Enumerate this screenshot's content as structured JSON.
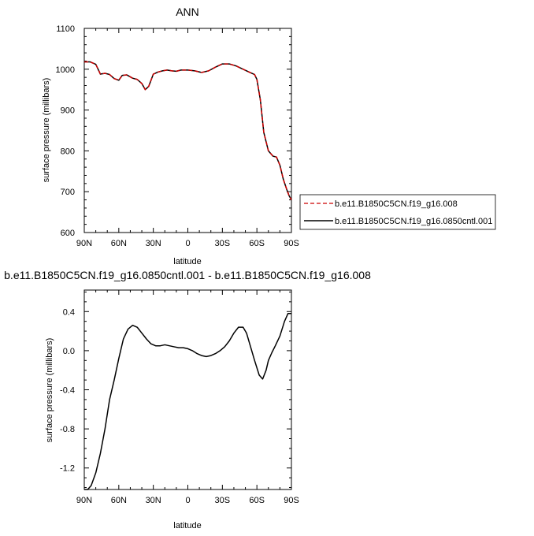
{
  "chart_data": [
    {
      "type": "line",
      "title": "ANN",
      "xlabel": "latitude",
      "ylabel": "surface pressure (millibars)",
      "xlim": [
        90,
        -90
      ],
      "ylim": [
        600,
        1100
      ],
      "x_ticks": [
        90,
        60,
        30,
        0,
        -30,
        -60,
        -90
      ],
      "x_tick_labels": [
        "90N",
        "60N",
        "30N",
        "0",
        "30S",
        "60S",
        "90S"
      ],
      "y_ticks": [
        600,
        700,
        800,
        900,
        1000,
        1100
      ],
      "y_tick_labels": [
        "600",
        "700",
        "800",
        "900",
        "1000",
        "1100"
      ],
      "legend_position": "right",
      "series": [
        {
          "name": "b.e11.B1850C5CN.f19_g16.008",
          "color": "#cc0000",
          "dash": true,
          "x": [
            90,
            85,
            80,
            76,
            72,
            68,
            64,
            60,
            57,
            53,
            48,
            44,
            40,
            37,
            34,
            30,
            26,
            22,
            18,
            14,
            10,
            6,
            0,
            -6,
            -12,
            -18,
            -24,
            -30,
            -36,
            -42,
            -48,
            -54,
            -58,
            -60,
            -63,
            -66,
            -70,
            -74,
            -77,
            -80,
            -83,
            -86,
            -88,
            -90
          ],
          "y": [
            1018,
            1018,
            1012,
            988,
            990,
            987,
            977,
            973,
            985,
            986,
            978,
            975,
            965,
            950,
            958,
            988,
            993,
            996,
            998,
            996,
            995,
            998,
            998,
            996,
            992,
            996,
            1005,
            1013,
            1013,
            1008,
            1000,
            992,
            987,
            975,
            925,
            845,
            800,
            787,
            785,
            765,
            730,
            705,
            690,
            680
          ]
        },
        {
          "name": "b.e11.B1850C5CN.f19_g16.0850cntl.001",
          "color": "#000000",
          "dash": false,
          "x": [
            90,
            85,
            80,
            76,
            72,
            68,
            64,
            60,
            57,
            53,
            48,
            44,
            40,
            37,
            34,
            30,
            26,
            22,
            18,
            14,
            10,
            6,
            0,
            -6,
            -12,
            -18,
            -24,
            -30,
            -36,
            -42,
            -48,
            -54,
            -58,
            -60,
            -63,
            -66,
            -70,
            -74,
            -77,
            -80,
            -83,
            -86,
            -88,
            -90
          ],
          "y": [
            1018,
            1018,
            1012,
            988,
            990,
            987,
            977,
            973,
            985,
            986,
            978,
            975,
            965,
            950,
            958,
            988,
            993,
            996,
            998,
            996,
            995,
            998,
            998,
            996,
            992,
            996,
            1005,
            1013,
            1013,
            1008,
            1000,
            992,
            987,
            975,
            925,
            845,
            800,
            787,
            785,
            765,
            730,
            705,
            690,
            680
          ]
        }
      ]
    },
    {
      "type": "line",
      "title": "b.e11.B1850C5CN.f19_g16.0850cntl.001 - b.e11.B1850C5CN.f19_g16.008",
      "xlabel": "latitude",
      "ylabel": "surface pressure (millibars)",
      "xlim": [
        90,
        -90
      ],
      "ylim": [
        -1.42,
        0.62
      ],
      "x_ticks": [
        90,
        60,
        30,
        0,
        -30,
        -60,
        -90
      ],
      "x_tick_labels": [
        "90N",
        "60N",
        "30N",
        "0",
        "30S",
        "60S",
        "90S"
      ],
      "y_ticks": [
        -1.2,
        -0.8,
        -0.4,
        0.0,
        0.4
      ],
      "y_tick_labels": [
        "-1.2",
        "-0.8",
        "-0.4",
        "0.0",
        "0.4"
      ],
      "series": [
        {
          "color": "#000000",
          "dash": false,
          "x": [
            90,
            87,
            84,
            80,
            76,
            72,
            68,
            64,
            60,
            56,
            52,
            48,
            44,
            40,
            36,
            32,
            28,
            24,
            20,
            16,
            12,
            8,
            4,
            0,
            -4,
            -8,
            -12,
            -16,
            -20,
            -24,
            -28,
            -32,
            -36,
            -40,
            -44,
            -48,
            -51,
            -54,
            -58,
            -62,
            -65,
            -68,
            -70,
            -73,
            -76,
            -80,
            -84,
            -87,
            -90
          ],
          "y": [
            -1.42,
            -1.42,
            -1.38,
            -1.25,
            -1.05,
            -0.8,
            -0.5,
            -0.3,
            -0.08,
            0.12,
            0.22,
            0.26,
            0.24,
            0.18,
            0.12,
            0.07,
            0.05,
            0.05,
            0.06,
            0.05,
            0.04,
            0.03,
            0.03,
            0.02,
            0.0,
            -0.03,
            -0.05,
            -0.06,
            -0.05,
            -0.03,
            0.0,
            0.04,
            0.1,
            0.18,
            0.24,
            0.24,
            0.18,
            0.06,
            -0.1,
            -0.25,
            -0.29,
            -0.2,
            -0.1,
            -0.02,
            0.05,
            0.15,
            0.3,
            0.38,
            0.38
          ]
        }
      ]
    }
  ]
}
